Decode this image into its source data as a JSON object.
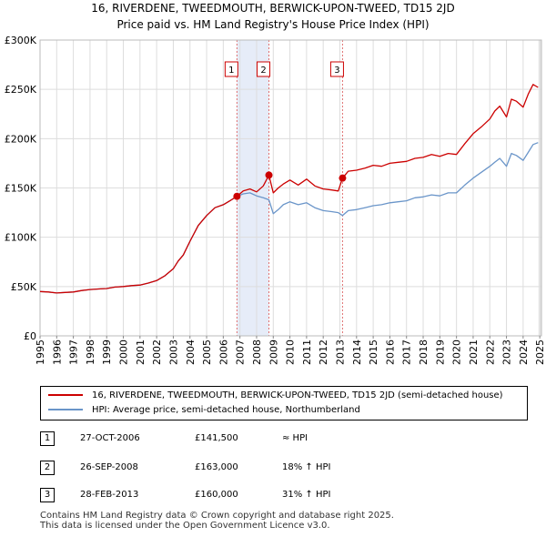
{
  "chart_data": {
    "type": "line",
    "title": "16, RIVERDENE, TWEEDMOUTH, BERWICK-UPON-TWEED, TD15 2JD",
    "subtitle": "Price paid vs. HM Land Registry's House Price Index (HPI)",
    "xlabel": "",
    "ylabel": "",
    "xlim": [
      1995,
      2025.1
    ],
    "ylim": [
      0,
      300000
    ],
    "y_ticks": [
      0,
      50000,
      100000,
      150000,
      200000,
      250000,
      300000
    ],
    "y_tick_labels": [
      "£0",
      "£50K",
      "£100K",
      "£150K",
      "£200K",
      "£250K",
      "£300K"
    ],
    "x_ticks": [
      1995,
      1996,
      1997,
      1998,
      1999,
      2000,
      2001,
      2002,
      2003,
      2004,
      2005,
      2006,
      2007,
      2008,
      2009,
      2010,
      2011,
      2012,
      2013,
      2014,
      2015,
      2016,
      2017,
      2018,
      2019,
      2020,
      2021,
      2022,
      2023,
      2024,
      2025
    ],
    "x_tick_labels": [
      "1995",
      "1996",
      "1997",
      "1998",
      "1999",
      "2000",
      "2001",
      "2002",
      "2003",
      "2004",
      "2005",
      "2006",
      "2007",
      "2008",
      "2009",
      "2010",
      "2011",
      "2012",
      "2013",
      "2014",
      "2015",
      "2016",
      "2017",
      "2018",
      "2019",
      "2020",
      "2021",
      "2022",
      "2023",
      "2024",
      "2025"
    ],
    "grid": true,
    "legend_position": "bottom",
    "series": [
      {
        "name": "16, RIVERDENE, TWEEDMOUTH, BERWICK-UPON-TWEED, TD15 2JD (semi-detached house)",
        "color": "#cc0000",
        "x": [
          1995.0,
          1995.5,
          1996.0,
          1996.5,
          1997.0,
          1997.5,
          1998.0,
          1998.5,
          1999.0,
          1999.5,
          2000.0,
          2000.5,
          2001.0,
          2001.5,
          2002.0,
          2002.5,
          2003.0,
          2003.3,
          2003.6,
          2004.0,
          2004.5,
          2005.0,
          2005.5,
          2006.0,
          2006.4,
          2006.82,
          2007.2,
          2007.6,
          2008.0,
          2008.4,
          2008.74,
          2009.0,
          2009.3,
          2009.6,
          2010.0,
          2010.5,
          2011.0,
          2011.5,
          2012.0,
          2012.5,
          2012.9,
          2013.16,
          2013.5,
          2014.0,
          2014.5,
          2015.0,
          2015.5,
          2016.0,
          2016.5,
          2017.0,
          2017.5,
          2018.0,
          2018.5,
          2019.0,
          2019.5,
          2020.0,
          2020.5,
          2021.0,
          2021.5,
          2022.0,
          2022.3,
          2022.6,
          2023.0,
          2023.3,
          2023.6,
          2024.0,
          2024.3,
          2024.6,
          2024.9
        ],
        "values": [
          45000,
          44500,
          43500,
          44000,
          44500,
          46000,
          47000,
          47500,
          48000,
          49500,
          50000,
          51000,
          51500,
          53500,
          56000,
          61000,
          68000,
          76000,
          82000,
          96000,
          112000,
          122000,
          130000,
          133000,
          137000,
          141500,
          147000,
          149000,
          146000,
          152000,
          163000,
          145000,
          150000,
          154000,
          158000,
          153000,
          159000,
          152000,
          149000,
          148000,
          147000,
          160000,
          167000,
          168000,
          170000,
          173000,
          172000,
          175000,
          176000,
          177000,
          180000,
          181000,
          184000,
          182000,
          185000,
          184000,
          195000,
          205000,
          212000,
          220000,
          228000,
          233000,
          222000,
          240000,
          238000,
          232000,
          245000,
          255000,
          252000
        ]
      },
      {
        "name": "HPI: Average price, semi-detached house, Northumberland",
        "color": "#6a95c9",
        "x": [
          1995.0,
          1995.5,
          1996.0,
          1996.5,
          1997.0,
          1997.5,
          1998.0,
          1998.5,
          1999.0,
          1999.5,
          2000.0,
          2000.5,
          2001.0,
          2001.5,
          2002.0,
          2002.5,
          2003.0,
          2003.3,
          2003.6,
          2004.0,
          2004.5,
          2005.0,
          2005.5,
          2006.0,
          2006.4,
          2006.82,
          2007.2,
          2007.6,
          2008.0,
          2008.4,
          2008.74,
          2009.0,
          2009.3,
          2009.6,
          2010.0,
          2010.5,
          2011.0,
          2011.5,
          2012.0,
          2012.5,
          2012.9,
          2013.16,
          2013.5,
          2014.0,
          2014.5,
          2015.0,
          2015.5,
          2016.0,
          2016.5,
          2017.0,
          2017.5,
          2018.0,
          2018.5,
          2019.0,
          2019.5,
          2020.0,
          2020.5,
          2021.0,
          2021.5,
          2022.0,
          2022.3,
          2022.6,
          2023.0,
          2023.3,
          2023.6,
          2024.0,
          2024.3,
          2024.6,
          2024.9
        ],
        "values": [
          45000,
          44500,
          43500,
          44000,
          44500,
          46000,
          47000,
          47500,
          48000,
          49500,
          50000,
          51000,
          51500,
          53500,
          56000,
          61000,
          68000,
          76000,
          82000,
          96000,
          112000,
          122000,
          130000,
          133000,
          137000,
          141500,
          144000,
          145000,
          142000,
          140000,
          138000,
          124000,
          128000,
          133000,
          136000,
          133000,
          135000,
          130000,
          127000,
          126000,
          125000,
          122000,
          127000,
          128000,
          130000,
          132000,
          133000,
          135000,
          136000,
          137000,
          140000,
          141000,
          143000,
          142000,
          145000,
          145000,
          153000,
          160000,
          166000,
          172000,
          176000,
          180000,
          172000,
          185000,
          183000,
          178000,
          186000,
          194000,
          196000
        ]
      }
    ],
    "sale_markers": [
      {
        "label": "1",
        "x": 2006.82,
        "value": 141500
      },
      {
        "label": "2",
        "x": 2008.74,
        "value": 163000
      },
      {
        "label": "3",
        "x": 2013.16,
        "value": 160000
      }
    ],
    "shaded_span": [
      2006.82,
      2008.74
    ]
  },
  "legend": {
    "property_label": "16, RIVERDENE, TWEEDMOUTH, BERWICK-UPON-TWEED, TD15 2JD (semi-detached house)",
    "hpi_label": "HPI: Average price, semi-detached house, Northumberland"
  },
  "transactions": [
    {
      "num": "1",
      "date": "27-OCT-2006",
      "price": "£141,500",
      "hpi": "≈ HPI"
    },
    {
      "num": "2",
      "date": "26-SEP-2008",
      "price": "£163,000",
      "hpi": "18% ↑ HPI"
    },
    {
      "num": "3",
      "date": "28-FEB-2013",
      "price": "£160,000",
      "hpi": "31% ↑ HPI"
    }
  ],
  "footer": {
    "line1": "Contains HM Land Registry data © Crown copyright and database right 2025.",
    "line2": "This data is licensed under the Open Government Licence v3.0."
  }
}
